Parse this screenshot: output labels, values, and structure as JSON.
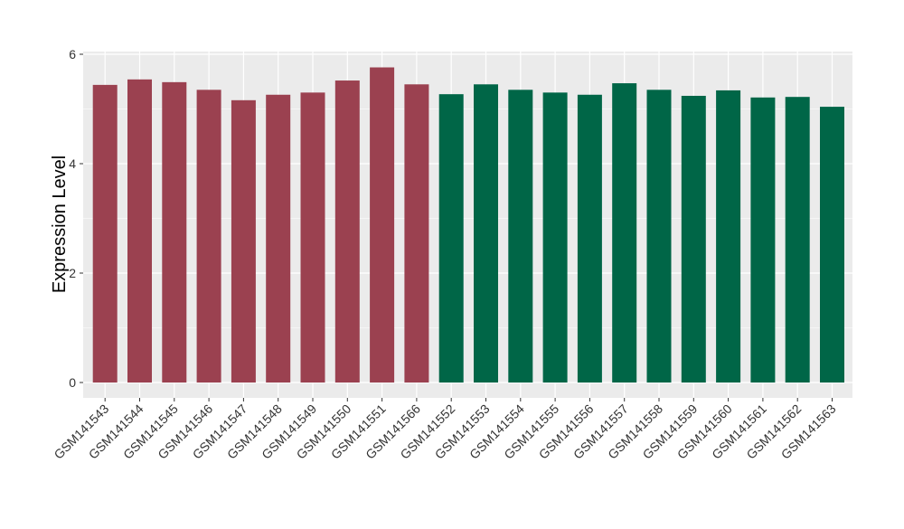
{
  "chart_data": {
    "type": "bar",
    "ylabel": "Expression Level",
    "xlabel": "",
    "ylim": [
      0,
      6
    ],
    "yticks": [
      0,
      2,
      4,
      6
    ],
    "grid": true,
    "categories": [
      "GSM141543",
      "GSM141544",
      "GSM141545",
      "GSM141546",
      "GSM141547",
      "GSM141548",
      "GSM141549",
      "GSM141550",
      "GSM141551",
      "GSM141566",
      "GSM141552",
      "GSM141553",
      "GSM141554",
      "GSM141555",
      "GSM141556",
      "GSM141557",
      "GSM141558",
      "GSM141559",
      "GSM141560",
      "GSM141561",
      "GSM141562",
      "GSM141563"
    ],
    "values": [
      5.44,
      5.54,
      5.49,
      5.35,
      5.16,
      5.26,
      5.3,
      5.52,
      5.76,
      5.45,
      5.27,
      5.45,
      5.35,
      5.3,
      5.26,
      5.47,
      5.35,
      5.24,
      5.34,
      5.21,
      5.22,
      5.04
    ],
    "bar_colors": [
      "#9b4150",
      "#9b4150",
      "#9b4150",
      "#9b4150",
      "#9b4150",
      "#9b4150",
      "#9b4150",
      "#9b4150",
      "#9b4150",
      "#9b4150",
      "#006647",
      "#006647",
      "#006647",
      "#006647",
      "#006647",
      "#006647",
      "#006647",
      "#006647",
      "#006647",
      "#006647",
      "#006647",
      "#006647"
    ],
    "panel_background": "#ebebeb",
    "grid_color": "#ffffff"
  }
}
